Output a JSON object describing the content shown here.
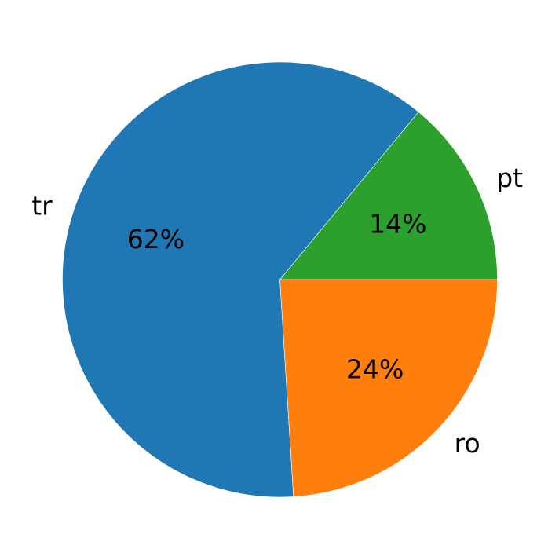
{
  "chart_data": {
    "type": "pie",
    "title": "",
    "categories": [
      "pt",
      "tr",
      "ro"
    ],
    "values": [
      14,
      62,
      24
    ],
    "percent_labels": [
      "14%",
      "62%",
      "24%"
    ],
    "colors": [
      "#2ca02c",
      "#1f77b4",
      "#ff7f0e"
    ],
    "start_angle_deg": 0,
    "direction": "counterclockwise",
    "legend": "none"
  }
}
